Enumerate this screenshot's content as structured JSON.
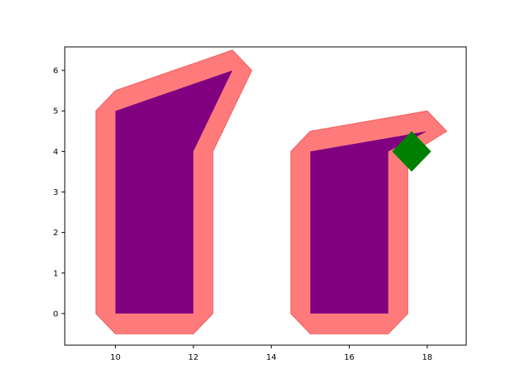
{
  "chart_data": {
    "type": "area",
    "title": "",
    "xlabel": "",
    "ylabel": "",
    "xlim": [
      8.7,
      19.0
    ],
    "ylim": [
      -0.78,
      6.58
    ],
    "grid": false,
    "x_ticks": [
      10,
      12,
      14,
      16,
      18
    ],
    "y_ticks": [
      0,
      1,
      2,
      3,
      4,
      5,
      6
    ],
    "colors": {
      "buffer_fill": "#ff7b7b",
      "buffer_edge": "#f25c5c",
      "polygon_fill": "#800080",
      "marker_fill": "#008000"
    },
    "series": [
      {
        "role": "buffer",
        "points": [
          [
            9.5,
            0.0
          ],
          [
            10.0,
            -0.5
          ],
          [
            12.0,
            -0.5
          ],
          [
            12.5,
            0.0
          ],
          [
            12.5,
            4.0
          ],
          [
            13.5,
            6.0
          ],
          [
            13.0,
            6.5
          ],
          [
            10.0,
            5.5
          ],
          [
            9.5,
            5.0
          ]
        ]
      },
      {
        "role": "polygon",
        "points": [
          [
            10.0,
            0.0
          ],
          [
            12.0,
            0.0
          ],
          [
            12.0,
            4.0
          ],
          [
            13.0,
            6.0
          ],
          [
            10.0,
            5.0
          ]
        ]
      },
      {
        "role": "buffer",
        "points": [
          [
            14.5,
            0.0
          ],
          [
            15.0,
            -0.5
          ],
          [
            17.0,
            -0.5
          ],
          [
            17.5,
            0.0
          ],
          [
            17.5,
            3.9
          ],
          [
            18.5,
            4.5
          ],
          [
            18.0,
            5.0
          ],
          [
            15.0,
            4.5
          ],
          [
            14.5,
            4.0
          ]
        ]
      },
      {
        "role": "polygon",
        "points": [
          [
            15.0,
            0.0
          ],
          [
            17.0,
            0.0
          ],
          [
            17.0,
            4.0
          ],
          [
            18.0,
            4.5
          ],
          [
            15.0,
            4.0
          ]
        ]
      },
      {
        "role": "marker",
        "points": [
          [
            17.6,
            4.5
          ],
          [
            18.1,
            4.0
          ],
          [
            17.6,
            3.5
          ],
          [
            17.1,
            4.0
          ]
        ]
      }
    ]
  }
}
